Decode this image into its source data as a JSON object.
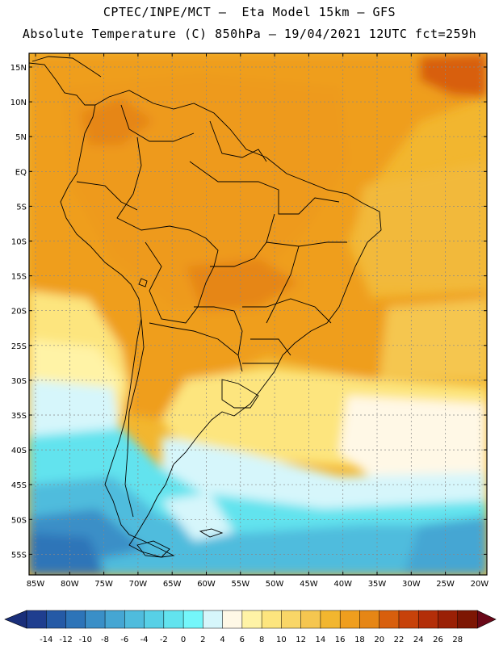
{
  "title_line1": "CPTEC/INPE/MCT —  Eta Model 15km — GFS",
  "title_line2": "Absolute Temperature (C) 850hPa — 19/04/2021 12UTC fct=259h",
  "lat_labels": [
    "15N",
    "10N",
    "5N",
    "EQ",
    "5S",
    "10S",
    "15S",
    "20S",
    "25S",
    "30S",
    "35S",
    "40S",
    "45S",
    "50S",
    "55S"
  ],
  "lon_labels": [
    "85W",
    "80W",
    "75W",
    "70W",
    "65W",
    "60W",
    "55W",
    "50W",
    "45W",
    "40W",
    "35W",
    "30W",
    "25W",
    "20W"
  ],
  "colorbar": {
    "labels": [
      "-14",
      "-12",
      "-10",
      "-8",
      "-6",
      "-4",
      "-2",
      "0",
      "2",
      "4",
      "6",
      "8",
      "10",
      "12",
      "14",
      "16",
      "18",
      "20",
      "22",
      "24",
      "26",
      "28"
    ],
    "colors": [
      "#1f3e8f",
      "#255aa6",
      "#2d74b8",
      "#3a8fc7",
      "#45a6d3",
      "#4fbcdd",
      "#57d0e6",
      "#62e3ee",
      "#74f6fa",
      "#d6f6fb",
      "#fff8e6",
      "#fff3a6",
      "#fde57e",
      "#f9d667",
      "#f5c650",
      "#f2b62f",
      "#ef9e1e",
      "#e68615",
      "#d85f0d",
      "#c7420a",
      "#b32e08",
      "#9a2005",
      "#7d1603"
    ],
    "end_color_low": "#1a2f7a",
    "end_color_high": "#6a0818"
  },
  "legend_title": "",
  "colors": {
    "frame": "#000000",
    "grid": "#888888",
    "border": "#000000"
  }
}
